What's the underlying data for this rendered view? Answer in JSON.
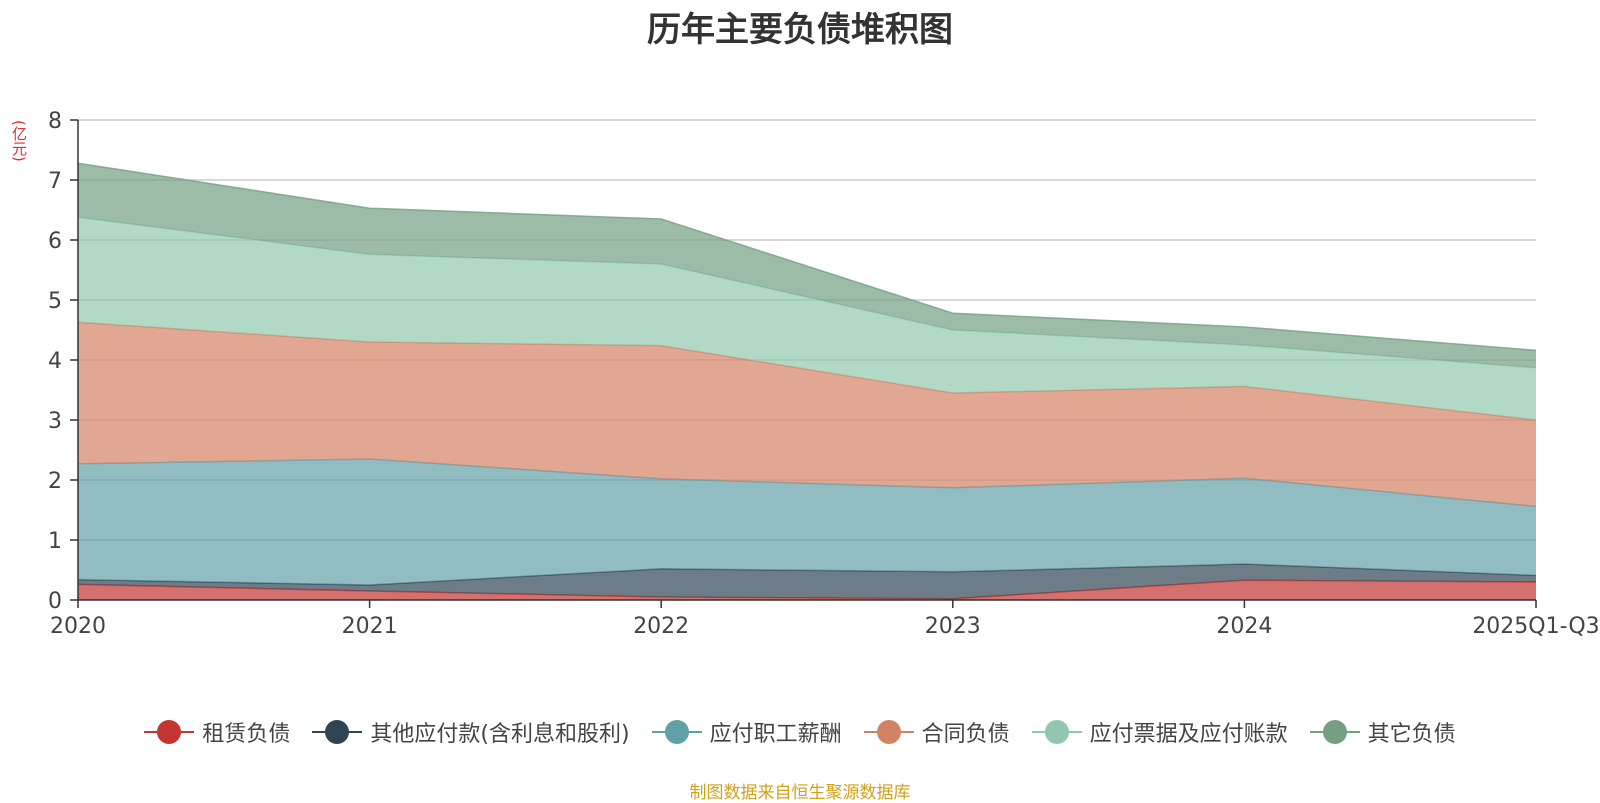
{
  "title": "历年主要负债堆积图",
  "unit": "(亿元)",
  "source": "制图数据来自恒生聚源数据库",
  "chart_data": {
    "type": "area",
    "stacked": true,
    "title": "历年主要负债堆积图",
    "ylabel": "(亿元)",
    "xlabel": "",
    "categories": [
      "2020",
      "2021",
      "2022",
      "2023",
      "2024",
      "2025Q1-Q3"
    ],
    "ylim": [
      0,
      8
    ],
    "yticks": [
      0,
      1,
      2,
      3,
      4,
      5,
      6,
      7,
      8
    ],
    "grid": true,
    "legend_position": "bottom",
    "series": [
      {
        "name": "租赁负债",
        "color": "#c23531",
        "values": [
          0.26,
          0.15,
          0.05,
          0.02,
          0.33,
          0.3
        ]
      },
      {
        "name": "其他应付款(含利息和股利)",
        "color": "#2f4554",
        "values": [
          0.08,
          0.1,
          0.47,
          0.45,
          0.27,
          0.11
        ]
      },
      {
        "name": "应付职工薪酬",
        "color": "#61a0a8",
        "values": [
          1.93,
          2.1,
          1.5,
          1.4,
          1.43,
          1.15
        ]
      },
      {
        "name": "合同负债",
        "color": "#d48265",
        "values": [
          2.36,
          1.95,
          2.22,
          1.58,
          1.53,
          1.44
        ]
      },
      {
        "name": "应付票据及应付账款",
        "color": "#91c7ae",
        "values": [
          1.75,
          1.46,
          1.36,
          1.05,
          0.69,
          0.87
        ]
      },
      {
        "name": "其它负债",
        "color": "#749f83",
        "values": [
          0.9,
          0.77,
          0.75,
          0.28,
          0.3,
          0.29
        ]
      }
    ]
  }
}
